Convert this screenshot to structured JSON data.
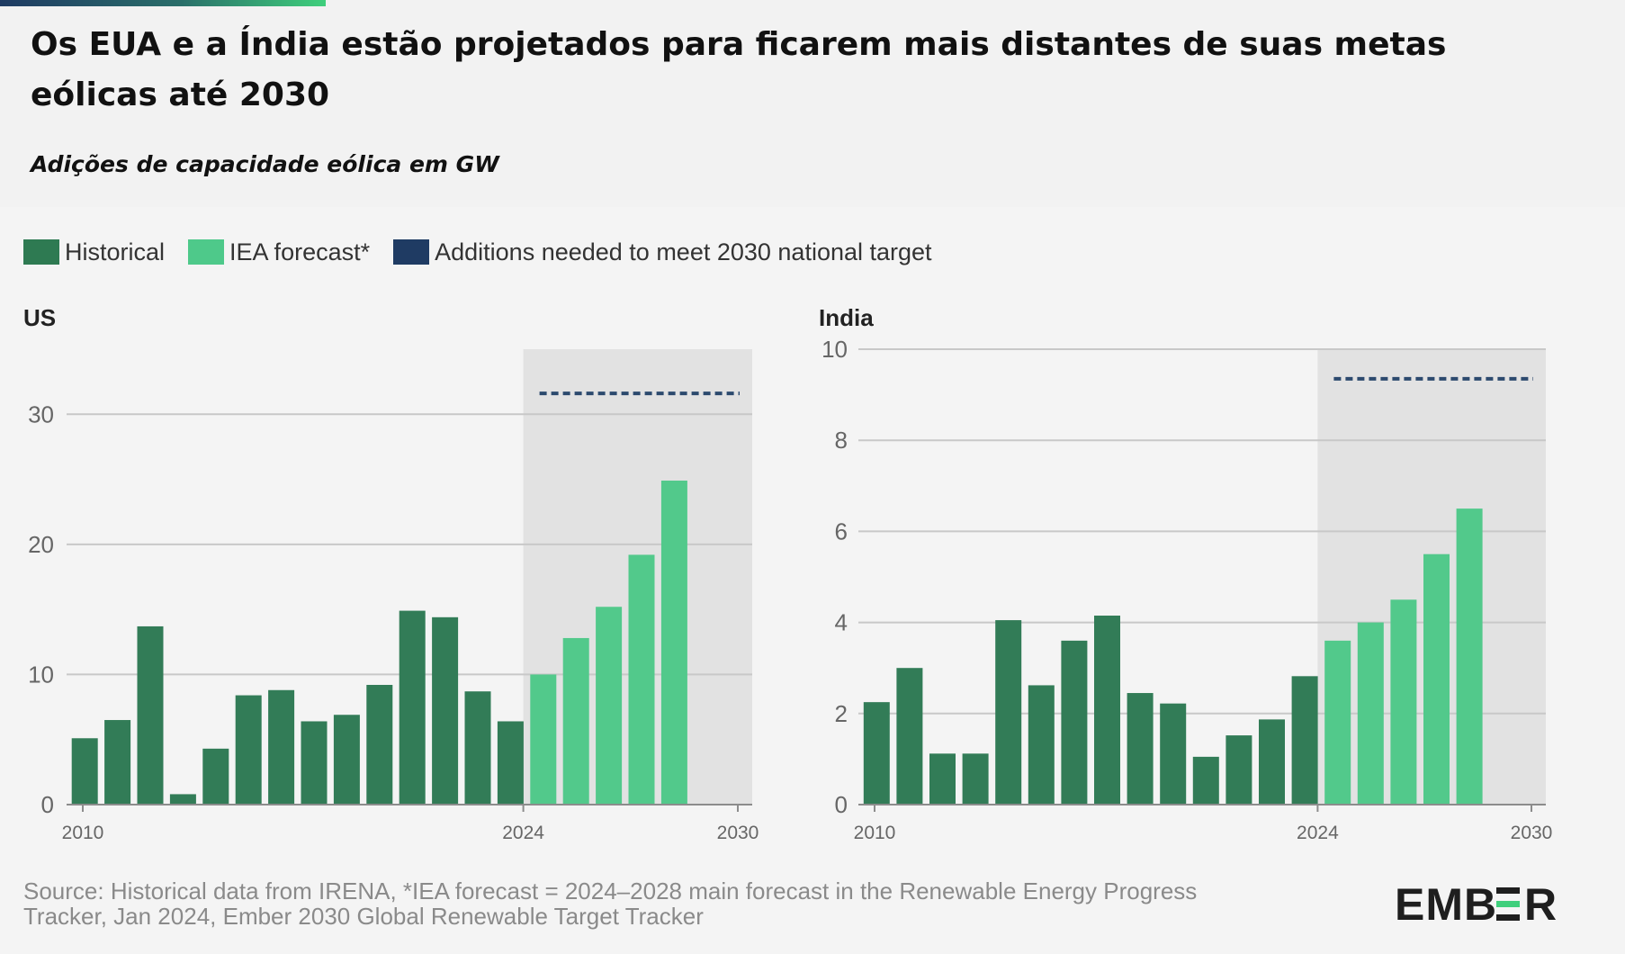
{
  "header": {
    "title": "Os EUA e a Índia estão projetados para ficarem mais distantes de suas metas eólicas até 2030",
    "subtitle": "Adições de capacidade eólica em GW"
  },
  "legend": [
    {
      "label": "Historical",
      "color": "#2e7a52"
    },
    {
      "label": "IEA forecast*",
      "color": "#4ec98a"
    },
    {
      "label": "Additions needed to meet 2030 national target",
      "color": "#1f3b63"
    }
  ],
  "colors": {
    "historical": "#327c57",
    "forecast": "#52c98b",
    "target": "#2c4a6e",
    "shade": "#e2e2e2",
    "grid": "#c8c8c8"
  },
  "chart_data": [
    {
      "type": "bar",
      "title": "US",
      "xlabel": "",
      "ylabel": "",
      "x_range": [
        2010,
        2030
      ],
      "x_ticks": [
        "2010",
        "2024",
        "2030"
      ],
      "ylim": [
        0,
        35
      ],
      "y_ticks": [
        0,
        10,
        20,
        30
      ],
      "grid": true,
      "shaded_from": 2024,
      "series": [
        {
          "name": "Historical",
          "x": [
            2010,
            2011,
            2012,
            2013,
            2014,
            2015,
            2016,
            2017,
            2018,
            2019,
            2020,
            2021,
            2022,
            2023
          ],
          "values": [
            5.1,
            6.5,
            13.7,
            0.8,
            4.3,
            8.4,
            8.8,
            6.4,
            6.9,
            9.2,
            14.9,
            14.4,
            8.7,
            6.4
          ]
        },
        {
          "name": "IEA forecast*",
          "x": [
            2024,
            2025,
            2026,
            2027,
            2028
          ],
          "values": [
            10.0,
            12.8,
            15.2,
            19.2,
            24.9
          ]
        }
      ],
      "target_line": {
        "name": "Additions needed to meet 2030 national target",
        "x_range": [
          2024,
          2030
        ],
        "value": 31.6
      }
    },
    {
      "type": "bar",
      "title": "India",
      "xlabel": "",
      "ylabel": "",
      "x_range": [
        2010,
        2030
      ],
      "x_ticks": [
        "2010",
        "2024",
        "2030"
      ],
      "ylim": [
        0,
        10
      ],
      "y_ticks": [
        0,
        2,
        4,
        6,
        8,
        10
      ],
      "grid": true,
      "shaded_from": 2024,
      "series": [
        {
          "name": "Historical",
          "x": [
            2010,
            2011,
            2012,
            2013,
            2014,
            2015,
            2016,
            2017,
            2018,
            2019,
            2020,
            2021,
            2022,
            2023
          ],
          "values": [
            2.25,
            3.0,
            1.12,
            1.12,
            4.05,
            2.62,
            3.6,
            4.15,
            2.45,
            2.22,
            1.05,
            1.52,
            1.87,
            2.82
          ]
        },
        {
          "name": "IEA forecast*",
          "x": [
            2024,
            2025,
            2026,
            2027,
            2028
          ],
          "values": [
            3.6,
            4.0,
            4.5,
            5.5,
            6.5
          ]
        }
      ],
      "target_line": {
        "name": "Additions needed to meet 2030 national target",
        "x_range": [
          2024,
          2030
        ],
        "value": 9.35
      }
    }
  ],
  "footer": {
    "source": "Source: Historical data from IRENA, *IEA forecast = 2024–2028 main forecast in the Renewable Energy Progress Tracker, Jan 2024, Ember 2030 Global Renewable Target Tracker",
    "logo_text": "EMBER"
  }
}
